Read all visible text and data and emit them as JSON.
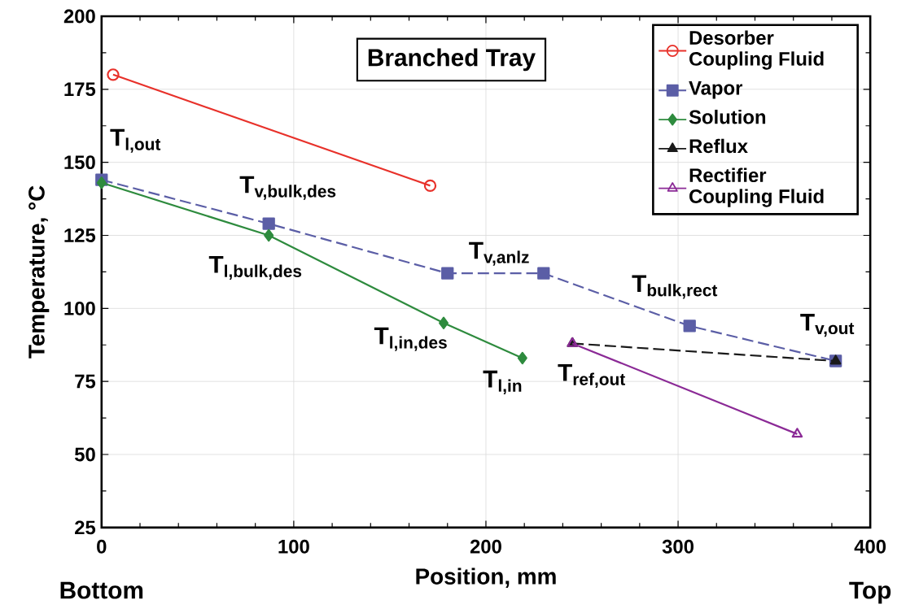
{
  "chart_data": {
    "type": "line",
    "title": "Branched Tray",
    "xlabel": "Position, mm",
    "ylabel": "Temperature, °C",
    "xlim": [
      0,
      400
    ],
    "xticks": [
      0,
      100,
      200,
      300,
      400
    ],
    "ylim": [
      25,
      200
    ],
    "yticks": [
      25,
      50,
      75,
      100,
      125,
      150,
      175,
      200
    ],
    "grid": true,
    "legend": "top right",
    "series": [
      {
        "name": "Desorber Coupling Fluid",
        "color": "#e8312a",
        "marker": "circle",
        "line_style": "solid",
        "x": [
          6,
          171
        ],
        "values": [
          180,
          142
        ]
      },
      {
        "name": "Vapor",
        "color": "#5b5ea6",
        "marker": "square",
        "line_style": "dashed",
        "x": [
          0,
          87,
          180,
          230,
          306,
          382
        ],
        "values": [
          144,
          129,
          112,
          112,
          94,
          82
        ]
      },
      {
        "name": "Solution",
        "color": "#2e8b3e",
        "marker": "diamond",
        "line_style": "solid",
        "x": [
          0,
          87,
          178,
          219
        ],
        "values": [
          143,
          125,
          95,
          83
        ]
      },
      {
        "name": "Reflux",
        "color": "#1a1a1a",
        "marker": "triangle",
        "line_style": "dashed",
        "x": [
          245,
          382
        ],
        "values": [
          88,
          82
        ]
      },
      {
        "name": "Rectifier Coupling Fluid",
        "color": "#8b2a96",
        "marker": "triangle-down",
        "line_style": "solid",
        "x": [
          245,
          362
        ],
        "values": [
          88,
          57
        ]
      }
    ],
    "annotations": [
      {
        "text": "T$_{l,out}$",
        "x": 0,
        "y": 144
      },
      {
        "text": "T$_{v,bulk,des}$",
        "x": 87,
        "y": 129
      },
      {
        "text": "T$_{l,bulk,des}$",
        "x": 87,
        "y": 125
      },
      {
        "text": "T$_{v,anlz}$",
        "x": 180,
        "y": 112
      },
      {
        "text": "T$_{bulk,rect}$",
        "x": 306,
        "y": 94
      },
      {
        "text": "T$_{v,out}$",
        "x": 382,
        "y": 82
      },
      {
        "text": "T$_{l,in,des}$",
        "x": 178,
        "y": 95
      },
      {
        "text": "T$_{l,in}$",
        "x": 219,
        "y": 83
      },
      {
        "text": "T$_{ref,out}$",
        "x": 245,
        "y": 88
      },
      "Bottom",
      "Top"
    ]
  }
}
